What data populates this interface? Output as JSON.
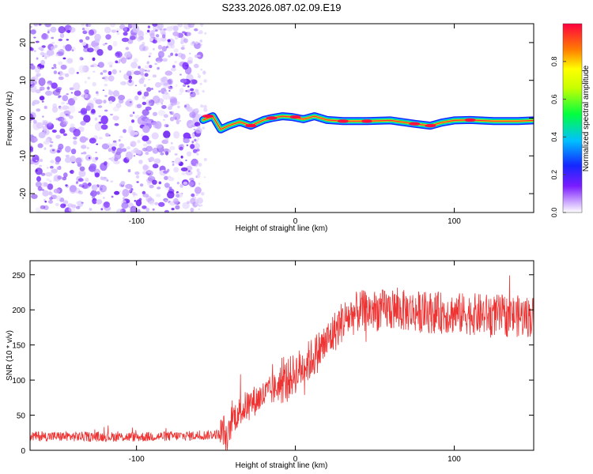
{
  "title": "S233.2026.087.02.09.E19",
  "chart_data": [
    {
      "type": "heatmap",
      "name": "spectrogram",
      "xlabel": "Height of straight line (km)",
      "ylabel": "Frequency (Hz)",
      "xlim": [
        -167,
        150
      ],
      "ylim": [
        -25,
        25
      ],
      "xticks": [
        -100,
        0,
        100
      ],
      "yticks": [
        -20,
        -10,
        0,
        10,
        20
      ],
      "colorbar": {
        "label": "Normalized spectral amplitude",
        "range": [
          0,
          1
        ],
        "ticks": [
          "0.0",
          "0.2",
          "0.4",
          "0.6",
          "0.8"
        ]
      },
      "noise_region_x": [
        -167,
        -60
      ],
      "signal_trace": {
        "x": [
          -58,
          -52,
          -47,
          -42,
          -35,
          -28,
          -20,
          -15,
          -8,
          -2,
          5,
          12,
          20,
          30,
          45,
          60,
          75,
          85,
          92,
          100,
          110,
          125,
          140,
          150
        ],
        "y": [
          -0.5,
          0.5,
          -3,
          -2,
          -1,
          -2,
          -0.5,
          0,
          0.5,
          0.3,
          -0.3,
          0.5,
          -0.5,
          -0.8,
          -0.8,
          -0.6,
          -1.5,
          -2,
          -1.2,
          -0.6,
          -0.5,
          -0.8,
          -0.8,
          -0.6
        ]
      }
    },
    {
      "type": "line",
      "name": "snr",
      "xlabel": "Height of straight line (km)",
      "ylabel": "SNR (10 * v/v)",
      "xlim": [
        -167,
        150
      ],
      "ylim": [
        0,
        270
      ],
      "xticks": [
        -100,
        0,
        100
      ],
      "yticks": [
        0,
        50,
        100,
        150,
        200,
        250
      ],
      "color": "#ee3333",
      "trend": {
        "x": [
          -167,
          -100,
          -60,
          -48,
          -45,
          -43,
          -40,
          -30,
          -20,
          -10,
          0,
          10,
          20,
          30,
          40,
          60,
          80,
          100,
          120,
          140,
          150
        ],
        "y": [
          20,
          19,
          21,
          23,
          30,
          8,
          45,
          65,
          78,
          92,
          110,
          130,
          155,
          185,
          198,
          200,
          197,
          195,
          193,
          191,
          190
        ]
      }
    }
  ]
}
